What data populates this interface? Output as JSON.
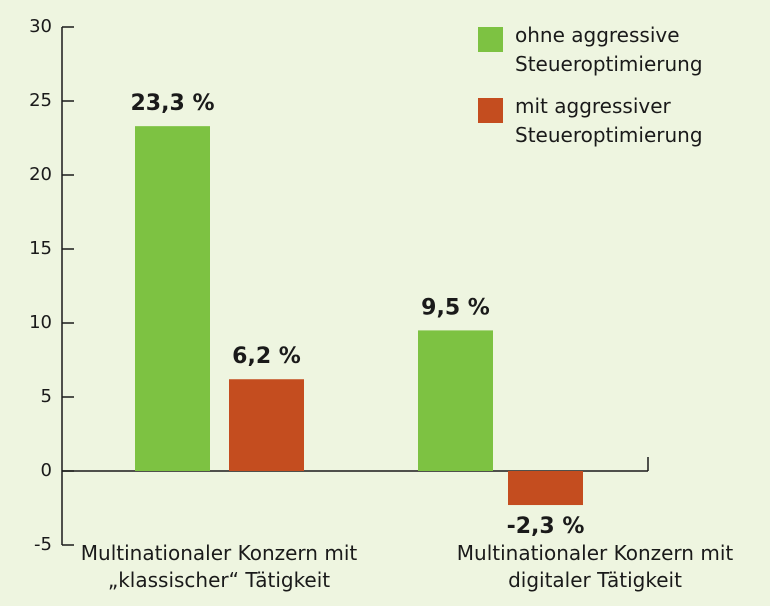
{
  "chart_data": {
    "type": "bar",
    "categories": [
      "Multinationaler Konzern mit „klassischer“ Tätigkeit",
      "Multinationaler Konzern mit digitaler Tätigkeit"
    ],
    "series": [
      {
        "name": "ohne aggressive Steueroptimierung",
        "color": "#7dc242",
        "values": [
          23.3,
          9.5
        ],
        "value_labels": [
          "23,3 %",
          "9,5 %"
        ]
      },
      {
        "name": "mit aggressiver Steueroptimierung",
        "color": "#c44d1f",
        "values": [
          6.2,
          -2.3
        ],
        "value_labels": [
          "6,2 %",
          "-2,3 %"
        ]
      }
    ],
    "ylim": [
      -5,
      30
    ],
    "yticks": [
      -5,
      0,
      5,
      10,
      15,
      20,
      25,
      30
    ],
    "legend": "upper right"
  }
}
